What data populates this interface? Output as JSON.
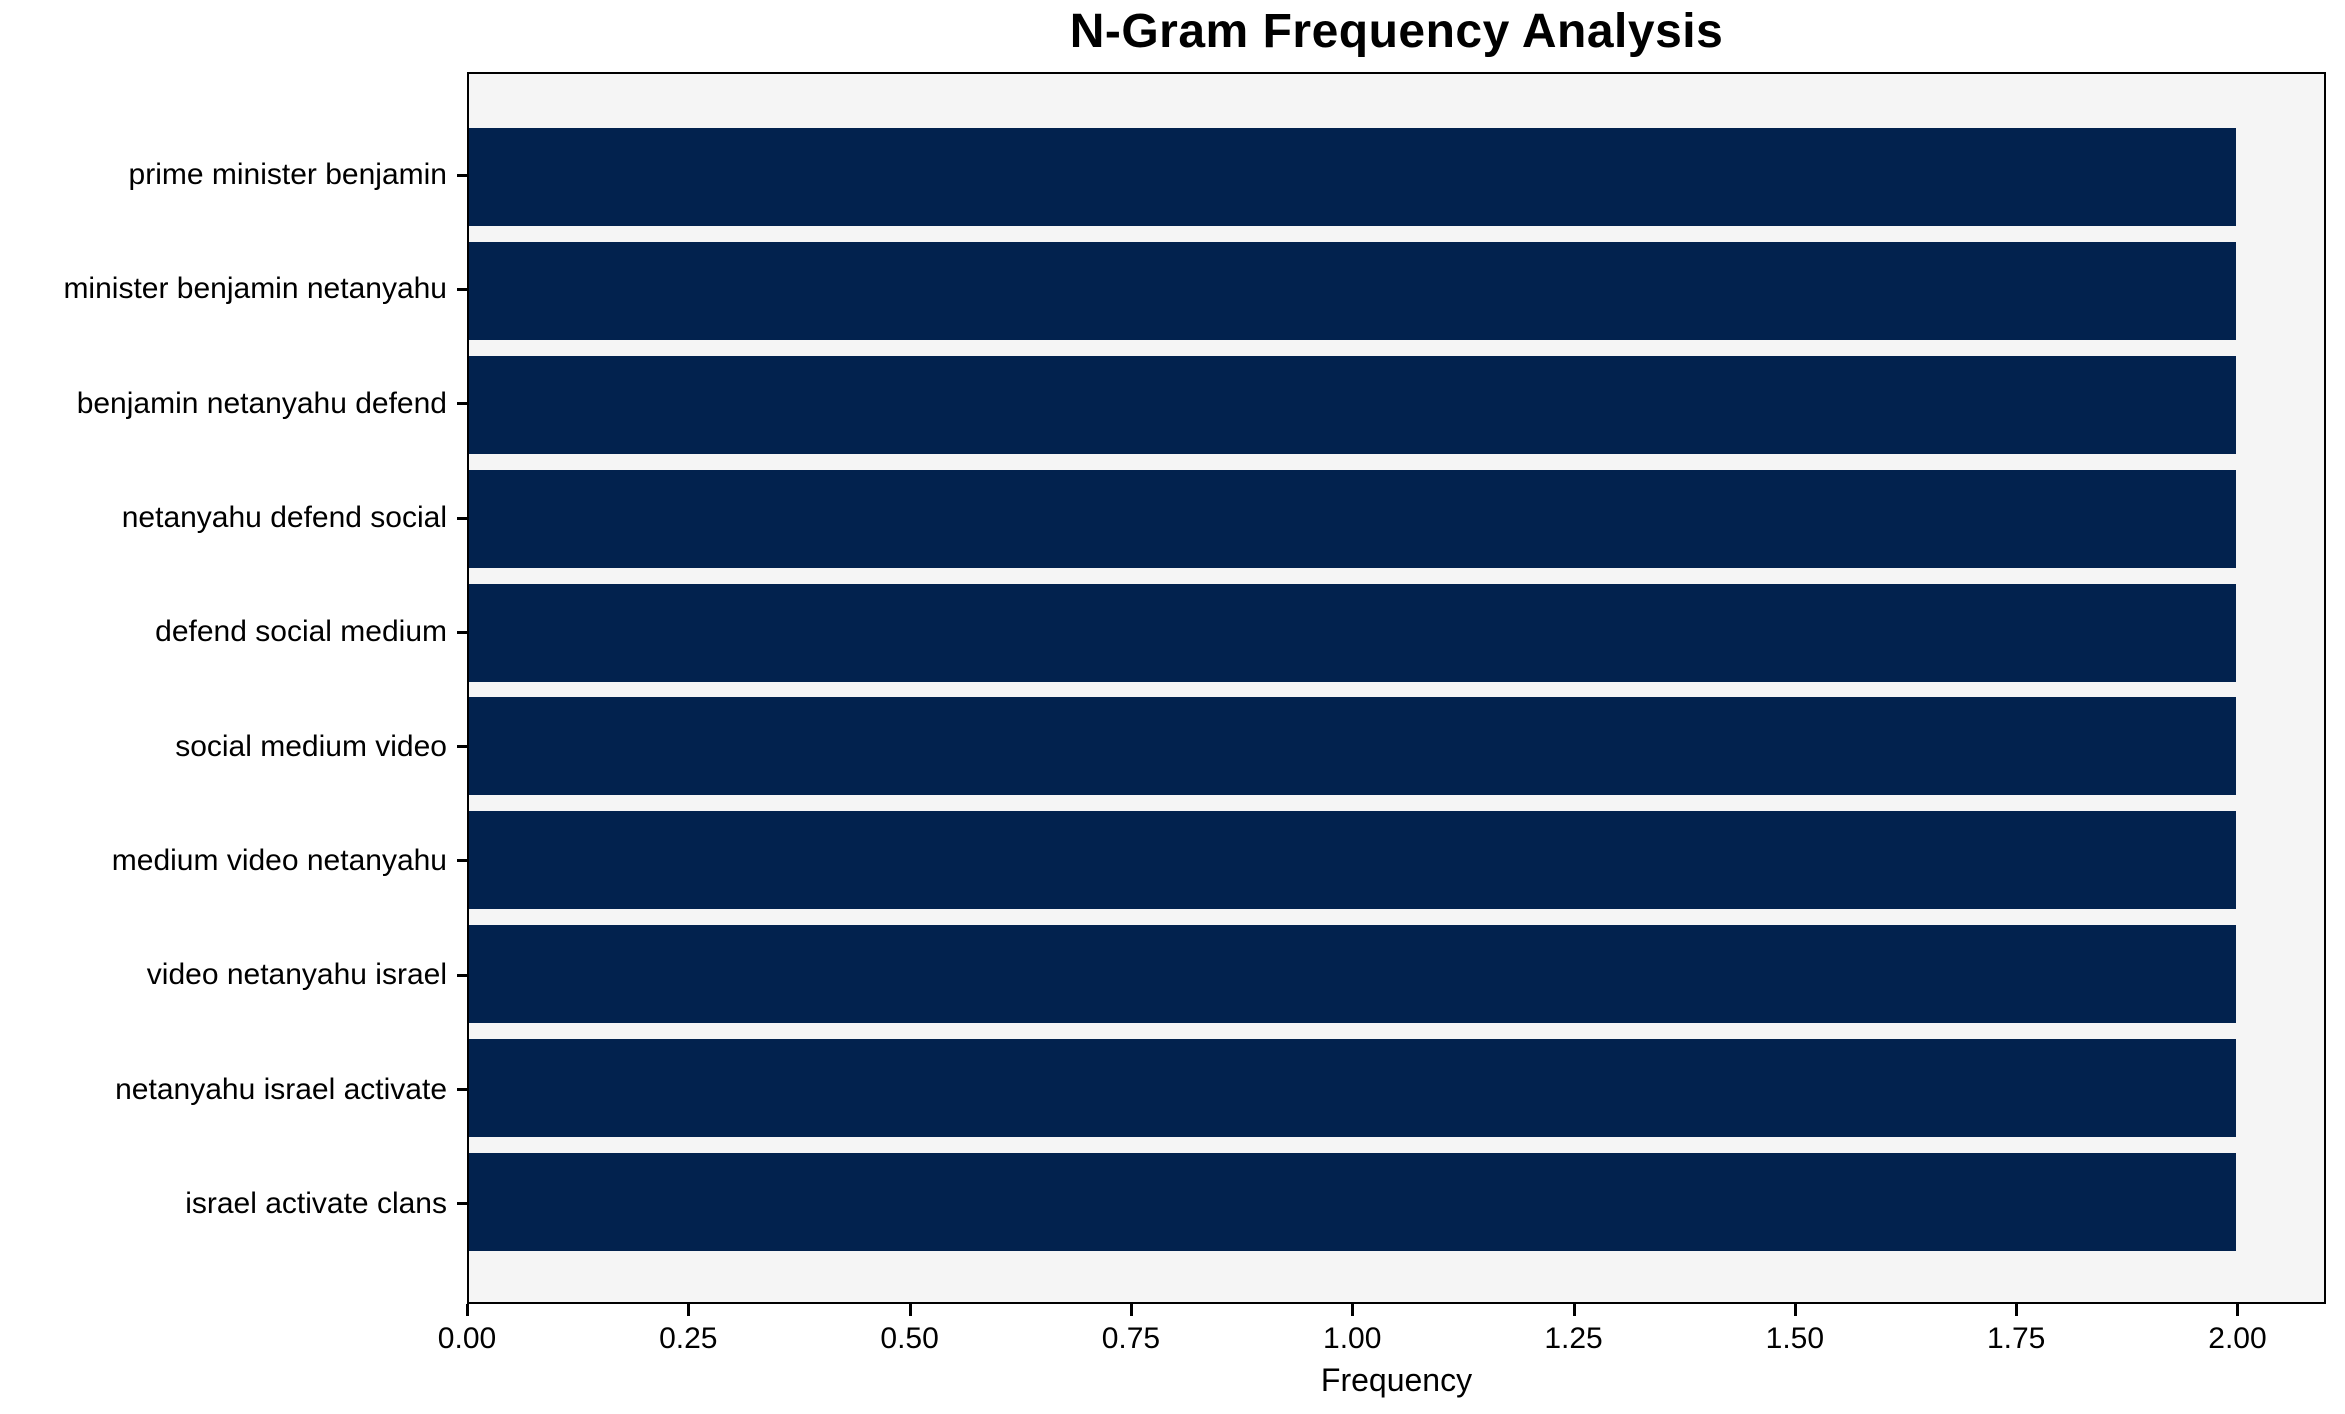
{
  "title": "N-Gram Frequency Analysis",
  "chart_data": {
    "type": "bar",
    "orientation": "horizontal",
    "title": "N-Gram Frequency Analysis",
    "categories": [
      "prime minister benjamin",
      "minister benjamin netanyahu",
      "benjamin netanyahu defend",
      "netanyahu defend social",
      "defend social medium",
      "social medium video",
      "medium video netanyahu",
      "video netanyahu israel",
      "netanyahu israel activate",
      "israel activate clans"
    ],
    "values": [
      2,
      2,
      2,
      2,
      2,
      2,
      2,
      2,
      2,
      2
    ],
    "xlabel": "Frequency",
    "ylabel": "",
    "xlim": [
      0,
      2.1
    ],
    "xticks": [
      0.0,
      0.25,
      0.5,
      0.75,
      1.0,
      1.25,
      1.5,
      1.75,
      2.0
    ],
    "xtick_labels": [
      "0.00",
      "0.25",
      "0.50",
      "0.75",
      "1.00",
      "1.25",
      "1.50",
      "1.75",
      "2.00"
    ],
    "grid": false,
    "legend_position": "none",
    "bar_color": "#02224e",
    "plot_background": "#f5f5f5",
    "figure_background": "#ffffff",
    "spine_color": "#000000"
  }
}
